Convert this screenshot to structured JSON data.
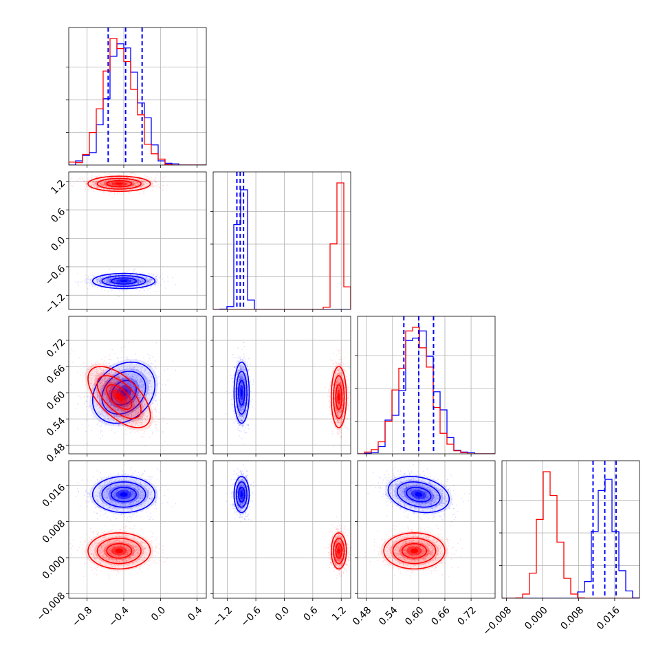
{
  "chart_data": {
    "type": "scatter",
    "title": "",
    "colors": {
      "series_a": "#0000ff",
      "series_b": "#ff0000",
      "grid": "#b0b0b0",
      "frame": "#000000"
    },
    "grid": true,
    "series": [
      {
        "color": "#0000ff",
        "means": [
          -0.4,
          -0.9,
          0.6,
          0.014
        ],
        "stds": [
          0.17,
          0.08,
          0.035,
          0.002
        ],
        "corr_01": 0.0,
        "corr_02": 0.25,
        "corr_03": 0.0,
        "corr_12": 0.0,
        "corr_13": 0.0,
        "corr_23": -0.25,
        "quantile_lines": [
          [
            -0.57,
            -0.38,
            -0.2
          ],
          [
            -1.0,
            -0.93,
            -0.86
          ],
          [
            0.566,
            0.6,
            0.634
          ],
          [
            0.0112,
            0.0138,
            0.0163
          ]
        ]
      },
      {
        "color": "#ff0000",
        "means": [
          -0.45,
          1.15,
          0.59,
          0.0015
        ],
        "stds": [
          0.17,
          0.08,
          0.035,
          0.002
        ],
        "corr_01": 0.0,
        "corr_02": -0.6,
        "corr_03": 0.0,
        "corr_12": 0.0,
        "corr_13": 0.0,
        "corr_23": 0.0
      }
    ],
    "axes": [
      {
        "label": "",
        "range": [
          -1.0,
          0.5
        ],
        "ticks": [
          -0.8,
          -0.4,
          0.0,
          0.4
        ],
        "tick_labels": [
          "−0.8",
          "−0.4",
          "0.0",
          "0.4"
        ]
      },
      {
        "label": "",
        "range": [
          -1.5,
          1.4
        ],
        "ticks": [
          -1.2,
          -0.6,
          0.0,
          0.6,
          1.2
        ],
        "tick_labels": [
          "−1.2",
          "−0.6",
          "0.0",
          "0.6",
          "1.2"
        ]
      },
      {
        "label": "",
        "range": [
          0.46,
          0.775
        ],
        "ticks": [
          0.48,
          0.54,
          0.6,
          0.66,
          0.72
        ],
        "tick_labels": [
          "0.48",
          "0.54",
          "0.60",
          "0.66",
          "0.72"
        ]
      },
      {
        "label": "",
        "range": [
          -0.009,
          0.0215
        ],
        "ticks": [
          -0.008,
          0.0,
          0.008,
          0.016
        ],
        "tick_labels": [
          "−0.008",
          "0.000",
          "0.008",
          "0.016"
        ]
      }
    ],
    "hist_bins": 20
  }
}
